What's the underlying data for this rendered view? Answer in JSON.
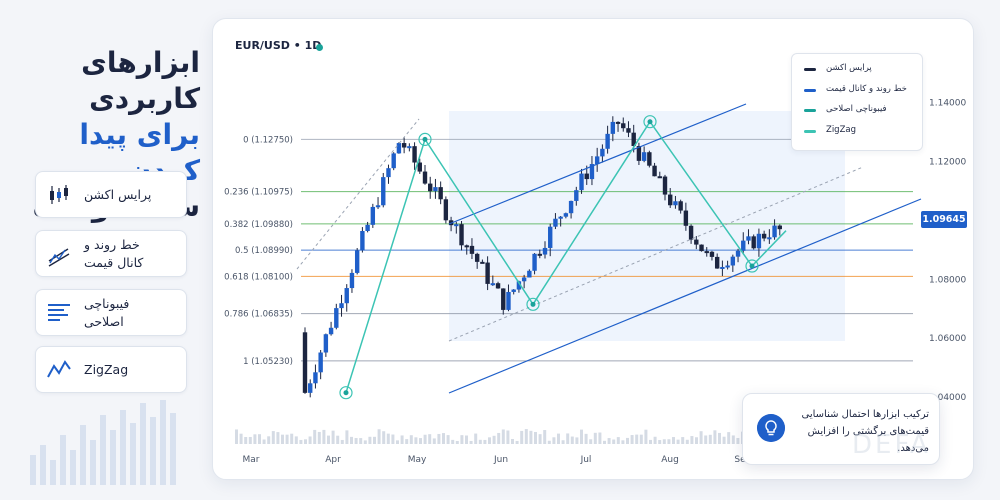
{
  "headline": {
    "line1": "ابزارهای کاربردی",
    "line2": "برای پیدا کردن",
    "line3": "سقف و کف"
  },
  "tools": [
    {
      "label": "پرایس اکشن",
      "icon": "candlestick-icon"
    },
    {
      "label": "خط روند و\nکانال قیمت",
      "icon": "trend-channel-icon"
    },
    {
      "label": "فیبوناچی\nاصلاحی",
      "icon": "fibonacci-icon"
    },
    {
      "label": "ZigZag",
      "icon": "zigzag-icon"
    }
  ],
  "chart": {
    "symbol": "EUR/USD • 1D",
    "status_color": "#1aa39a",
    "current_price": "1.09645",
    "legend": [
      {
        "label": "پرایس اکشن",
        "color": "#1c2540"
      },
      {
        "label": "خط روند و کانال قیمت",
        "color": "#1f5fc9"
      },
      {
        "label": "فیبوناچی اصلاحی",
        "color": "#1aa39a"
      },
      {
        "label": "ZigZag",
        "color": "#3cc4b4"
      }
    ],
    "tooltip": "ترکیب ابزارها احتمال شناسایی\nقیمت‌های برگشتی را افزایش\nمی‌دهد."
  },
  "chart_data": {
    "type": "candlestick",
    "x_ticks": [
      "Mar",
      "Apr",
      "May",
      "Jun",
      "Jul",
      "Aug",
      "Se"
    ],
    "y_ticks": [
      "1.14000",
      "1.12000",
      "1.10000",
      "1.08000",
      "1.06000",
      "1.04000"
    ],
    "ylim": [
      1.038,
      1.148
    ],
    "fib_levels": [
      {
        "label": "0 (1.12750)",
        "value": 1.1275,
        "color": "#9aa3b2"
      },
      {
        "label": "0.236 (1.10975)",
        "value": 1.10975,
        "color": "#4caf50"
      },
      {
        "label": "0.382 (1.09880)",
        "value": 1.0988,
        "color": "#4caf50"
      },
      {
        "label": "0.5 (1.08990)",
        "value": 1.0899,
        "color": "#1f5fc9"
      },
      {
        "label": "0.618 (1.08100)",
        "value": 1.081,
        "color": "#f08a24"
      },
      {
        "label": "0.786 (1.06835)",
        "value": 1.06835,
        "color": "#8a93a3"
      },
      {
        "label": "1 (1.05230)",
        "value": 1.0523,
        "color": "#8a93a3"
      }
    ],
    "zigzag": [
      {
        "i": 0,
        "v": 1.0415
      },
      {
        "i": 1,
        "v": 1.1275
      },
      {
        "i": 2,
        "v": 1.0715
      },
      {
        "i": 3,
        "v": 1.1335
      },
      {
        "i": 4,
        "v": 1.0845
      },
      {
        "i": 5,
        "v": 1.0965
      }
    ]
  }
}
